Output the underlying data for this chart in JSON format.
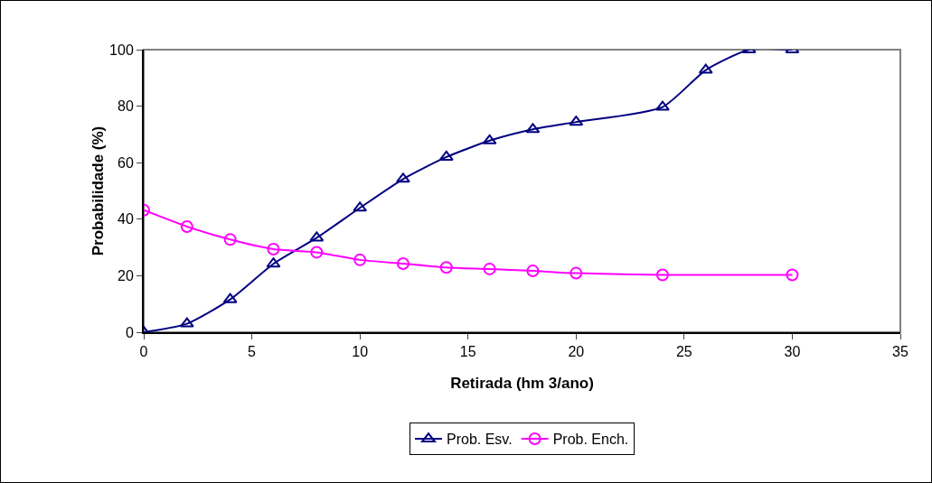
{
  "chart_data": {
    "type": "line",
    "xlabel": "Retirada (hm 3/ano)",
    "ylabel": "Probabilidade (%)",
    "xlim": [
      0,
      35
    ],
    "xticks": [
      0,
      5,
      10,
      15,
      20,
      25,
      30,
      35
    ],
    "ylim": [
      0,
      100
    ],
    "yticks": [
      0,
      20,
      40,
      60,
      80,
      100
    ],
    "grid": false,
    "legend": "bottom",
    "series": [
      {
        "name": "Prob. Esv.",
        "color": "#000080",
        "marker": "triangle",
        "x": [
          0,
          2,
          4,
          6,
          8,
          10,
          12,
          14,
          16,
          18,
          20,
          24,
          26,
          28,
          30
        ],
        "values": [
          0,
          3,
          11.6,
          24.2,
          33.4,
          44,
          54.2,
          62,
          67.8,
          71.8,
          74.4,
          79.7,
          92.8,
          100,
          100
        ]
      },
      {
        "name": "Prob. Ench.",
        "color": "#ff00ff",
        "marker": "circle",
        "x": [
          0,
          2,
          4,
          6,
          8,
          10,
          12,
          14,
          16,
          18,
          20,
          24,
          30
        ],
        "values": [
          43.2,
          37.4,
          32.8,
          29.4,
          28.3,
          25.6,
          24.3,
          22.9,
          22.4,
          21.7,
          20.9,
          20.3,
          20.3
        ]
      }
    ]
  }
}
